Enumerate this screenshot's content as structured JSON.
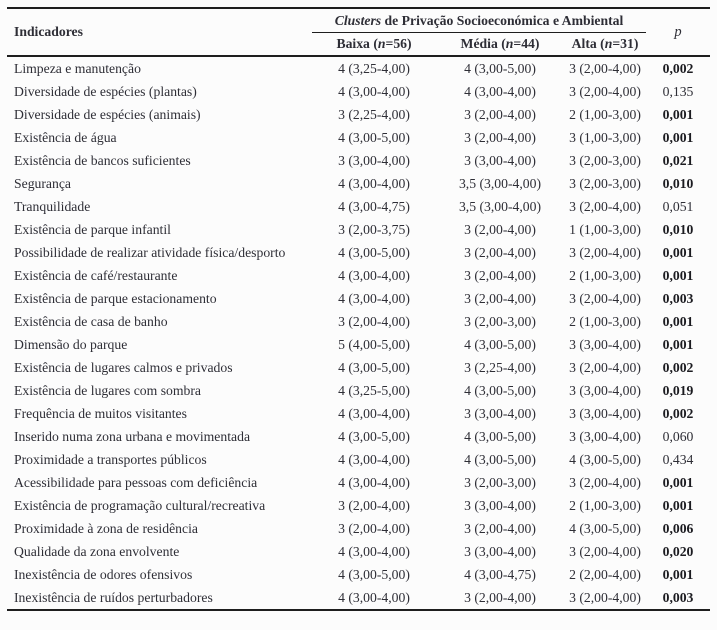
{
  "table": {
    "indicators_label": "Indicadores",
    "group_title_italic": "Clusters",
    "group_title_rest": " de Privação Socioeconómica e Ambiental",
    "p_label": "p",
    "cluster_columns": [
      {
        "pre": "Baixa (",
        "n": "n",
        "post": "=56)"
      },
      {
        "pre": "Média (",
        "n": "n",
        "post": "=44)"
      },
      {
        "pre": "Alta (",
        "n": "n",
        "post": "=31)"
      }
    ],
    "rows": [
      {
        "indicator": "Limpeza e manutenção",
        "baixa": "4 (3,25-4,00)",
        "media": "4 (3,00-5,00)",
        "alta": "3 (2,00-4,00)",
        "p": "0,002",
        "p_bold": true
      },
      {
        "indicator": "Diversidade de espécies (plantas)",
        "baixa": "4 (3,00-4,00)",
        "media": "4 (3,00-4,00)",
        "alta": "3 (2,00-4,00)",
        "p": "0,135",
        "p_bold": false
      },
      {
        "indicator": "Diversidade de espécies (animais)",
        "baixa": "3 (2,25-4,00)",
        "media": "3 (2,00-4,00)",
        "alta": "2 (1,00-3,00)",
        "p": "0,001",
        "p_bold": true
      },
      {
        "indicator": "Existência de água",
        "baixa": "4 (3,00-5,00)",
        "media": "3 (2,00-4,00)",
        "alta": "3 (1,00-3,00)",
        "p": "0,001",
        "p_bold": true
      },
      {
        "indicator": "Existência de bancos suficientes",
        "baixa": "3 (3,00-4,00)",
        "media": "3 (3,00-4,00)",
        "alta": "3 (2,00-3,00)",
        "p": "0,021",
        "p_bold": true
      },
      {
        "indicator": "Segurança",
        "baixa": "4 (3,00-4,00)",
        "media": "3,5 (3,00-4,00)",
        "alta": "3 (2,00-3,00)",
        "p": "0,010",
        "p_bold": true
      },
      {
        "indicator": "Tranquilidade",
        "baixa": "4 (3,00-4,75)",
        "media": "3,5 (3,00-4,00)",
        "alta": "3 (2,00-4,00)",
        "p": "0,051",
        "p_bold": false
      },
      {
        "indicator": "Existência de parque infantil",
        "baixa": "3 (2,00-3,75)",
        "media": "3 (2,00-4,00)",
        "alta": "1 (1,00-3,00)",
        "p": "0,010",
        "p_bold": true
      },
      {
        "indicator": "Possibilidade de realizar atividade física/desporto",
        "baixa": "4 (3,00-5,00)",
        "media": "3 (2,00-4,00)",
        "alta": "3 (2,00-4,00)",
        "p": "0,001",
        "p_bold": true
      },
      {
        "indicator": "Existência de café/restaurante",
        "baixa": "4 (3,00-4,00)",
        "media": "3 (2,00-4,00)",
        "alta": "2 (1,00-3,00)",
        "p": "0,001",
        "p_bold": true
      },
      {
        "indicator": "Existência de parque estacionamento",
        "baixa": "4 (3,00-4,00)",
        "media": "3 (2,00-4,00)",
        "alta": "3 (2,00-4,00)",
        "p": "0,003",
        "p_bold": true
      },
      {
        "indicator": "Existência de casa de banho",
        "baixa": "3 (2,00-4,00)",
        "media": "3 (2,00-3,00)",
        "alta": "2 (1,00-3,00)",
        "p": "0,001",
        "p_bold": true
      },
      {
        "indicator": "Dimensão do parque",
        "baixa": "5 (4,00-5,00)",
        "media": "4 (3,00-5,00)",
        "alta": "3 (3,00-4,00)",
        "p": "0,001",
        "p_bold": true
      },
      {
        "indicator": "Existência de lugares calmos e privados",
        "baixa": "4 (3,00-5,00)",
        "media": "3 (2,25-4,00)",
        "alta": "3 (2,00-4,00)",
        "p": "0,002",
        "p_bold": true
      },
      {
        "indicator": "Existência de lugares com sombra",
        "baixa": "4 (3,25-5,00)",
        "media": "4 (3,00-5,00)",
        "alta": "3 (3,00-4,00)",
        "p": "0,019",
        "p_bold": true
      },
      {
        "indicator": "Frequência de muitos visitantes",
        "baixa": "4 (3,00-4,00)",
        "media": "3 (3,00-4,00)",
        "alta": "3 (3,00-4,00)",
        "p": "0,002",
        "p_bold": true
      },
      {
        "indicator": "Inserido numa zona urbana e movimentada",
        "baixa": "4 (3,00-5,00)",
        "media": "4 (3,00-5,00)",
        "alta": "3 (3,00-4,00)",
        "p": "0,060",
        "p_bold": false
      },
      {
        "indicator": "Proximidade a transportes públicos",
        "baixa": "4 (3,00-4,00)",
        "media": "4 (3,00-5,00)",
        "alta": "4 (3,00-5,00)",
        "p": "0,434",
        "p_bold": false
      },
      {
        "indicator": "Acessibilidade para pessoas com deficiência",
        "baixa": "4 (3,00-4,00)",
        "media": "3 (2,00-3,00)",
        "alta": "3 (2,00-4,00)",
        "p": "0,001",
        "p_bold": true
      },
      {
        "indicator": "Existência de programação cultural/recreativa",
        "baixa": "3 (2,00-4,00)",
        "media": "3 (3,00-4,00)",
        "alta": "2 (1,00-3,00)",
        "p": "0,001",
        "p_bold": true
      },
      {
        "indicator": "Proximidade à zona de residência",
        "baixa": "3 (2,00-4,00)",
        "media": "3 (2,00-4,00)",
        "alta": "4 (3,00-5,00)",
        "p": "0,006",
        "p_bold": true
      },
      {
        "indicator": "Qualidade da zona envolvente",
        "baixa": "4 (3,00-4,00)",
        "media": "3 (3,00-4,00)",
        "alta": "3 (2,00-4,00)",
        "p": "0,020",
        "p_bold": true
      },
      {
        "indicator": "Inexistência de odores ofensivos",
        "baixa": "4 (3,00-5,00)",
        "media": "4 (3,00-4,75)",
        "alta": "2 (2,00-4,00)",
        "p": "0,001",
        "p_bold": true
      },
      {
        "indicator": "Inexistência de ruídos perturbadores",
        "baixa": "4 (3,00-4,00)",
        "media": "3 (2,00-4,00)",
        "alta": "3 (2,00-4,00)",
        "p": "0,003",
        "p_bold": true
      }
    ],
    "colors": {
      "text": "#2e2e36",
      "rule": "#1e1e1e",
      "background": "#fcfcfc"
    }
  }
}
